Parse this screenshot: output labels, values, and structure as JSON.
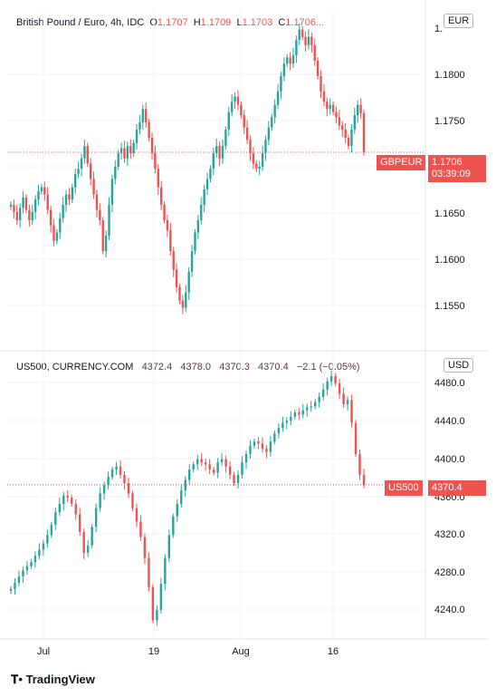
{
  "colors": {
    "up": "#26a69a",
    "down": "#ef5350",
    "grid": "#f0f3fa",
    "axis": "#e0e3eb"
  },
  "brand": {
    "label": "TradingView"
  },
  "chart_data": [
    {
      "type": "candlestick",
      "title": "British Pound / Euro, 4h, IDC",
      "ohlc_label": {
        "o_key": "O",
        "o_val": "1.1707",
        "h_key": "H",
        "h_val": "1.1709",
        "l_key": "L",
        "l_val": "1.1703",
        "c_key": "C",
        "c_val": "1.1706..."
      },
      "currency": "EUR",
      "symbol_tag": "GBPEUR",
      "last_price": "1.1706",
      "countdown": "03:39:09",
      "y_ticks": [
        "1.1800",
        "1.1750",
        "1.1700",
        "1.1650",
        "1.1600",
        "1.1550"
      ],
      "y_top_label": "1.",
      "ylim": [
        1.1515,
        1.1845
      ],
      "last_value": 1.1706,
      "closes": [
        1.1655,
        1.1648,
        1.164,
        1.1652,
        1.1662,
        1.165,
        1.164,
        1.1648,
        1.166,
        1.1668,
        1.1672,
        1.1665,
        1.165,
        1.1635,
        1.162,
        1.1628,
        1.1642,
        1.1655,
        1.1665,
        1.166,
        1.1672,
        1.1685,
        1.169,
        1.17,
        1.1712,
        1.1695,
        1.168,
        1.1665,
        1.165,
        1.164,
        1.161,
        1.1625,
        1.1655,
        1.168,
        1.1692,
        1.1705,
        1.171,
        1.17,
        1.1712,
        1.1705,
        1.1715,
        1.1728,
        1.1735,
        1.1748,
        1.1735,
        1.172,
        1.1705,
        1.169,
        1.1672,
        1.1655,
        1.164,
        1.163,
        1.161,
        1.1592,
        1.1575,
        1.1562,
        1.1555,
        1.157,
        1.159,
        1.161,
        1.1628,
        1.164,
        1.1655,
        1.167,
        1.168,
        1.169,
        1.1705,
        1.1712,
        1.17,
        1.1712,
        1.1728,
        1.1745,
        1.1755,
        1.176,
        1.1752,
        1.1742,
        1.173,
        1.1718,
        1.1705,
        1.1695,
        1.169,
        1.1692,
        1.1705,
        1.1718,
        1.173,
        1.174,
        1.1752,
        1.1765,
        1.178,
        1.1792,
        1.1798,
        1.1792,
        1.18,
        1.1815,
        1.1825,
        1.1818,
        1.181,
        1.1818,
        1.181,
        1.1795,
        1.178,
        1.1765,
        1.1755,
        1.1748,
        1.1752,
        1.1745,
        1.174,
        1.1732,
        1.1728,
        1.172,
        1.1712,
        1.1728,
        1.1742,
        1.1752,
        1.1744,
        1.1706
      ]
    },
    {
      "type": "candlestick",
      "title": "US500, CURRENCY.COM",
      "ohlc_label": {
        "o_val": "4372.4",
        "h_val": "4378.0",
        "l_val": "4370.3",
        "c_val": "4370.4",
        "chg": "−2.1 (−0.05%)"
      },
      "currency": "USD",
      "symbol_tag": "US500",
      "last_price": "4370.4",
      "y_ticks": [
        "4480.0",
        "4440.0",
        "4400.0",
        "4360.0",
        "4320.0",
        "4280.0",
        "4240.0"
      ],
      "ylim": [
        4222,
        4495
      ],
      "last_value": 4370.4,
      "closes": [
        4270,
        4276,
        4282,
        4288,
        4292,
        4296,
        4302,
        4308,
        4314,
        4322,
        4332,
        4344,
        4352,
        4360,
        4358,
        4352,
        4342,
        4325,
        4305,
        4312,
        4330,
        4348,
        4362,
        4370,
        4378,
        4385,
        4388,
        4380,
        4372,
        4362,
        4348,
        4335,
        4320,
        4300,
        4272,
        4240,
        4250,
        4275,
        4300,
        4322,
        4340,
        4352,
        4365,
        4375,
        4385,
        4390,
        4395,
        4392,
        4390,
        4385,
        4382,
        4392,
        4395,
        4388,
        4380,
        4372,
        4380,
        4392,
        4400,
        4408,
        4412,
        4410,
        4405,
        4402,
        4412,
        4420,
        4425,
        4430,
        4432,
        4436,
        4440,
        4438,
        4442,
        4445,
        4446,
        4450,
        4455,
        4462,
        4470,
        4475,
        4468,
        4458,
        4448,
        4452,
        4430,
        4400,
        4380,
        4370.4
      ]
    }
  ],
  "x_ticks": [
    "Jul",
    "19",
    "Aug",
    "16"
  ]
}
